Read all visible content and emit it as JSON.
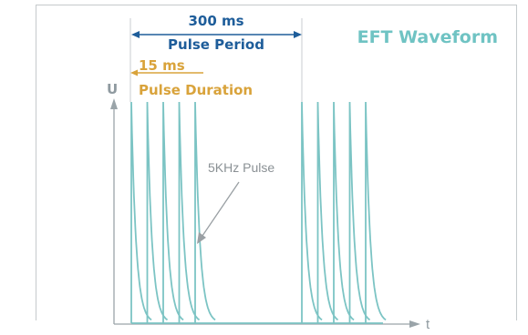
{
  "title": "EFT Waveform",
  "pulse_period": {
    "value": "300 ms",
    "label": "Pulse Period"
  },
  "pulse_duration": {
    "value": "15 ms",
    "label": "Pulse Duration"
  },
  "pulse_annotation": "5KHz Pulse",
  "axes": {
    "y_label": "U",
    "x_label": "t"
  },
  "colors": {
    "wave": "#7cc4c4",
    "wave_dark": "#2f8f8f",
    "title": "#6fc3c3",
    "period": "#1e5d9a",
    "duration": "#d9a33b",
    "axis": "#8f9aa0",
    "annotation": "#8a9094"
  },
  "waveform": {
    "bursts_shown": 2,
    "pulses_per_burst": 5
  }
}
